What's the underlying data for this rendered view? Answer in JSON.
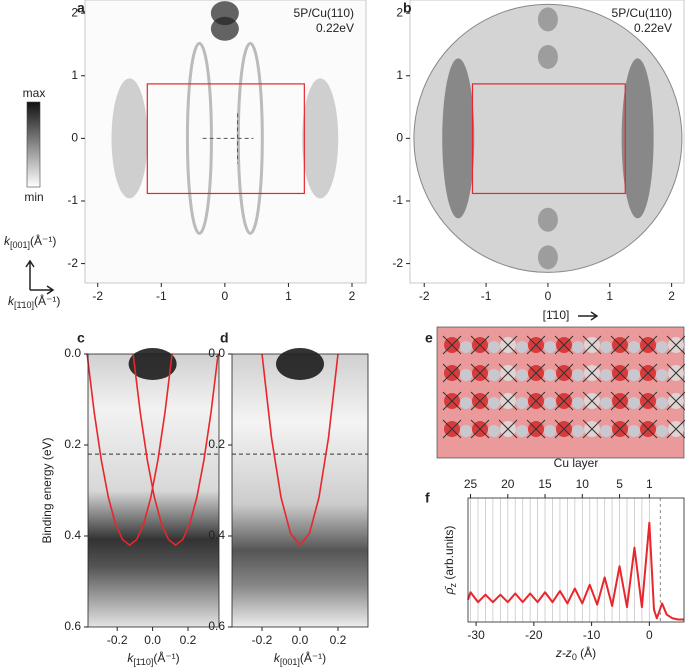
{
  "chart_data": [
    {
      "type": "heatmap",
      "panel": "a",
      "annotation": [
        "5P/Cu(110)",
        "0.22eV"
      ],
      "xlim": [
        -2.2,
        2.22
      ],
      "ylim": [
        -2.31,
        2.21
      ],
      "xticks": [
        -2,
        -1,
        0,
        1,
        2
      ],
      "yticks": [
        -2,
        -1,
        0,
        1,
        2
      ],
      "box": {
        "x": [
          -1.22,
          1.25
        ],
        "y": [
          -0.88,
          0.87
        ],
        "color": "#e8262b"
      },
      "ylabel": [
        "k",
        "[001]",
        "(Å⁻¹)"
      ],
      "xlabel": [
        "k",
        "[1̄10]",
        "(Å⁻¹)"
      ]
    },
    {
      "type": "heatmap",
      "panel": "b",
      "annotation": [
        "5P/Cu(110)",
        "0.22eV"
      ],
      "circular": true,
      "xlim": [
        -2.23,
        2.2
      ],
      "ylim": [
        -2.31,
        2.21
      ],
      "xticks": [
        -2,
        -1,
        0,
        1,
        2
      ],
      "yticks": [
        -2,
        -1,
        0,
        1,
        2
      ],
      "box": {
        "x": [
          -1.22,
          1.25
        ],
        "y": [
          -0.88,
          0.87
        ],
        "color": "#e8262b"
      }
    },
    {
      "type": "band",
      "panel": "c",
      "ylabel": "Binding energy (eV)",
      "xlabel": [
        "k",
        "[1̄10]",
        "(Å⁻¹)"
      ],
      "xlim": [
        -0.365,
        0.375
      ],
      "ylim": [
        0.6,
        0.0
      ],
      "xticks": [
        -0.2,
        {
          "value": 0,
          "label": "0.0"
        },
        0.2
      ],
      "yticks": [
        {
          "value": 0,
          "label": "0.0"
        },
        0.2,
        0.4,
        0.6
      ],
      "hline": 0.22,
      "series": [
        {
          "color": "#e8262b",
          "x": [
            -0.37,
            -0.33,
            -0.29,
            -0.25,
            -0.21,
            -0.17,
            -0.13,
            -0.09,
            -0.05,
            -0.01,
            0.03,
            0.07,
            0.11
          ],
          "values": [
            0,
            0.128,
            0.233,
            0.315,
            0.373,
            0.408,
            0.42,
            0.408,
            0.373,
            0.315,
            0.233,
            0.128,
            0
          ]
        },
        {
          "color": "#e8262b",
          "x": [
            -0.11,
            -0.07,
            -0.03,
            0.01,
            0.05,
            0.09,
            0.13,
            0.17,
            0.21,
            0.25,
            0.29,
            0.33,
            0.37
          ],
          "values": [
            0,
            0.128,
            0.233,
            0.315,
            0.373,
            0.408,
            0.42,
            0.408,
            0.373,
            0.315,
            0.233,
            0.128,
            0
          ]
        }
      ]
    },
    {
      "type": "band",
      "panel": "d",
      "xlabel": [
        "k",
        "[001]",
        "(Å⁻¹)"
      ],
      "xlim": [
        -0.358,
        0.358
      ],
      "ylim": [
        0.6,
        0.0
      ],
      "xticks": [
        -0.2,
        {
          "value": 0,
          "label": "0.0"
        },
        0.2
      ],
      "yticks": [
        {
          "value": 0,
          "label": "0.0"
        },
        0.2,
        0.4,
        0.6
      ],
      "hline": 0.22,
      "series": [
        {
          "color": "#e8262b",
          "x": [
            -0.2,
            -0.15,
            -0.1,
            -0.05,
            0,
            0.05,
            0.1,
            0.15,
            0.2
          ],
          "values": [
            0,
            0.184,
            0.315,
            0.394,
            0.42,
            0.394,
            0.315,
            0.184,
            0
          ]
        }
      ]
    },
    {
      "type": "line",
      "panel": "f",
      "xlabel": [
        "z-z",
        "0",
        " (Å)"
      ],
      "ylabel": [
        "ρ̄",
        "z",
        " (arb.units)"
      ],
      "x2label": "Cu layer",
      "xlim": [
        -31.4,
        6
      ],
      "ylim": [
        0,
        1
      ],
      "xticks": [
        -30,
        -20,
        -10,
        0
      ],
      "x2ticks": [
        {
          "value": -30.96,
          "label": "25"
        },
        {
          "value": -24.51,
          "label": "20"
        },
        {
          "value": -18.06,
          "label": "15"
        },
        {
          "value": -11.61,
          "label": "10"
        },
        {
          "value": -5.16,
          "label": "5"
        },
        {
          "value": 0,
          "label": "1"
        }
      ],
      "layer_lines": [
        0,
        -1.29,
        -2.58,
        -3.87,
        -5.16,
        -6.45,
        -7.74,
        -9.03,
        -10.32,
        -11.61,
        -12.9,
        -14.19,
        -15.48,
        -16.77,
        -18.06,
        -19.35,
        -20.64,
        -21.93,
        -23.22,
        -24.51,
        -25.8,
        -27.09,
        -28.38,
        -29.67,
        -30.96
      ],
      "dashed_x": 1.9,
      "series": [
        {
          "color": "#e8262b",
          "x": [
            -31.4,
            -30.96,
            -29.67,
            -28.38,
            -27.09,
            -25.8,
            -24.51,
            -23.22,
            -21.93,
            -20.64,
            -19.35,
            -18.06,
            -16.77,
            -15.48,
            -14.19,
            -12.9,
            -11.61,
            -10.32,
            -9.03,
            -7.74,
            -6.45,
            -5.16,
            -3.87,
            -2.58,
            -1.29,
            0,
            0.8,
            1.3,
            2.2,
            3,
            4,
            5,
            6
          ],
          "values": [
            0.18,
            0.24,
            0.16,
            0.22,
            0.16,
            0.22,
            0.16,
            0.23,
            0.16,
            0.23,
            0.16,
            0.24,
            0.16,
            0.25,
            0.15,
            0.27,
            0.15,
            0.3,
            0.14,
            0.36,
            0.13,
            0.45,
            0.12,
            0.6,
            0.12,
            0.8,
            0.1,
            0.03,
            0.15,
            0.06,
            0.03,
            0.02,
            0.02
          ]
        }
      ]
    }
  ],
  "colorbar": {
    "max": "max",
    "min": "min"
  },
  "figure_e": {
    "panel": "e",
    "direction": "[1̄10]"
  }
}
